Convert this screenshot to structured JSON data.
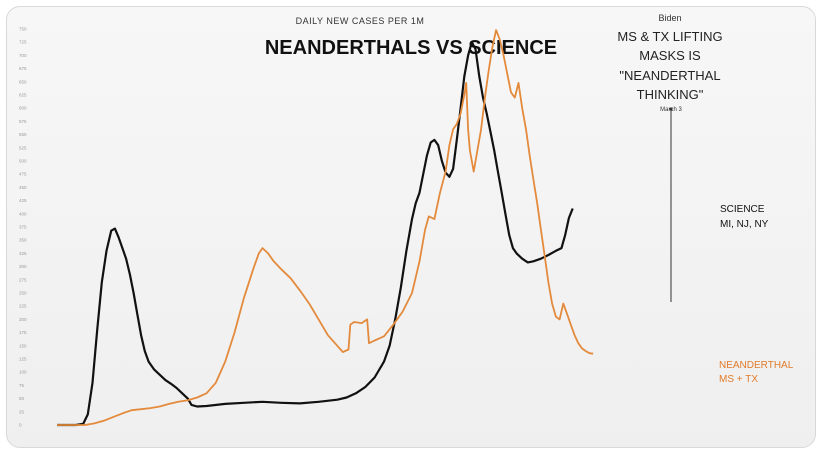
{
  "chart_data": {
    "type": "line",
    "subtitle": "DAILY NEW CASES PER 1M",
    "title": "NEANDERTHALS VS SCIENCE",
    "ylim": [
      0,
      750
    ],
    "yticks": [
      0,
      25,
      50,
      75,
      100,
      125,
      150,
      175,
      200,
      225,
      250,
      275,
      300,
      325,
      350,
      375,
      400,
      425,
      450,
      475,
      500,
      525,
      550,
      575,
      600,
      625,
      650,
      675,
      700,
      725,
      750
    ],
    "series": [
      {
        "name": "SCIENCE MI, NJ, NY",
        "color": "#111111",
        "points": [
          [
            0,
            0
          ],
          [
            20,
            0
          ],
          [
            28,
            2
          ],
          [
            33,
            20
          ],
          [
            38,
            80
          ],
          [
            43,
            180
          ],
          [
            48,
            270
          ],
          [
            53,
            330
          ],
          [
            58,
            368
          ],
          [
            62,
            372
          ],
          [
            66,
            355
          ],
          [
            70,
            335
          ],
          [
            74,
            315
          ],
          [
            78,
            285
          ],
          [
            82,
            250
          ],
          [
            86,
            210
          ],
          [
            90,
            170
          ],
          [
            94,
            140
          ],
          [
            98,
            120
          ],
          [
            104,
            105
          ],
          [
            110,
            95
          ],
          [
            116,
            85
          ],
          [
            122,
            78
          ],
          [
            128,
            70
          ],
          [
            134,
            60
          ],
          [
            140,
            50
          ],
          [
            144,
            38
          ],
          [
            150,
            35
          ],
          [
            160,
            36
          ],
          [
            180,
            40
          ],
          [
            200,
            42
          ],
          [
            220,
            44
          ],
          [
            240,
            42
          ],
          [
            260,
            41
          ],
          [
            280,
            44
          ],
          [
            300,
            48
          ],
          [
            310,
            52
          ],
          [
            320,
            60
          ],
          [
            330,
            72
          ],
          [
            340,
            90
          ],
          [
            350,
            120
          ],
          [
            356,
            150
          ],
          [
            362,
            200
          ],
          [
            368,
            260
          ],
          [
            374,
            330
          ],
          [
            380,
            390
          ],
          [
            384,
            420
          ],
          [
            388,
            440
          ],
          [
            392,
            475
          ],
          [
            396,
            510
          ],
          [
            400,
            535
          ],
          [
            404,
            540
          ],
          [
            408,
            530
          ],
          [
            412,
            500
          ],
          [
            416,
            478
          ],
          [
            420,
            470
          ],
          [
            424,
            485
          ],
          [
            428,
            540
          ],
          [
            432,
            600
          ],
          [
            436,
            660
          ],
          [
            440,
            700
          ],
          [
            444,
            725
          ],
          [
            448,
            712
          ],
          [
            452,
            660
          ],
          [
            456,
            620
          ],
          [
            460,
            590
          ],
          [
            464,
            555
          ],
          [
            468,
            520
          ],
          [
            472,
            480
          ],
          [
            476,
            440
          ],
          [
            480,
            400
          ],
          [
            484,
            360
          ],
          [
            488,
            335
          ],
          [
            492,
            325
          ],
          [
            498,
            315
          ],
          [
            504,
            308
          ],
          [
            510,
            310
          ],
          [
            518,
            315
          ],
          [
            526,
            322
          ],
          [
            534,
            330
          ],
          [
            540,
            335
          ],
          [
            544,
            360
          ],
          [
            548,
            392
          ],
          [
            552,
            410
          ]
        ]
      },
      {
        "name": "NEANDERTHAL MS + TX",
        "color": "#e38a3c",
        "points": [
          [
            0,
            0
          ],
          [
            30,
            0
          ],
          [
            40,
            3
          ],
          [
            50,
            8
          ],
          [
            60,
            15
          ],
          [
            70,
            22
          ],
          [
            80,
            28
          ],
          [
            90,
            30
          ],
          [
            100,
            32
          ],
          [
            110,
            35
          ],
          [
            120,
            40
          ],
          [
            130,
            44
          ],
          [
            140,
            47
          ],
          [
            150,
            52
          ],
          [
            160,
            60
          ],
          [
            170,
            80
          ],
          [
            180,
            120
          ],
          [
            190,
            175
          ],
          [
            200,
            240
          ],
          [
            210,
            295
          ],
          [
            216,
            325
          ],
          [
            220,
            335
          ],
          [
            226,
            325
          ],
          [
            232,
            310
          ],
          [
            240,
            295
          ],
          [
            250,
            278
          ],
          [
            260,
            255
          ],
          [
            270,
            230
          ],
          [
            280,
            200
          ],
          [
            290,
            170
          ],
          [
            300,
            150
          ],
          [
            306,
            138
          ],
          [
            312,
            143
          ],
          [
            314,
            190
          ],
          [
            318,
            195
          ],
          [
            326,
            193
          ],
          [
            332,
            200
          ],
          [
            334,
            155
          ],
          [
            340,
            160
          ],
          [
            350,
            168
          ],
          [
            360,
            190
          ],
          [
            370,
            215
          ],
          [
            380,
            250
          ],
          [
            388,
            310
          ],
          [
            394,
            370
          ],
          [
            398,
            395
          ],
          [
            404,
            390
          ],
          [
            410,
            440
          ],
          [
            416,
            480
          ],
          [
            420,
            530
          ],
          [
            424,
            560
          ],
          [
            428,
            570
          ],
          [
            432,
            590
          ],
          [
            436,
            625
          ],
          [
            438,
            648
          ],
          [
            440,
            560
          ],
          [
            442,
            520
          ],
          [
            446,
            480
          ],
          [
            450,
            520
          ],
          [
            454,
            560
          ],
          [
            458,
            620
          ],
          [
            462,
            670
          ],
          [
            466,
            715
          ],
          [
            470,
            748
          ],
          [
            474,
            730
          ],
          [
            478,
            700
          ],
          [
            482,
            665
          ],
          [
            486,
            630
          ],
          [
            490,
            620
          ],
          [
            494,
            648
          ],
          [
            498,
            600
          ],
          [
            502,
            560
          ],
          [
            506,
            510
          ],
          [
            510,
            465
          ],
          [
            514,
            420
          ],
          [
            518,
            370
          ],
          [
            522,
            320
          ],
          [
            526,
            270
          ],
          [
            530,
            230
          ],
          [
            534,
            205
          ],
          [
            538,
            200
          ],
          [
            542,
            230
          ],
          [
            546,
            210
          ],
          [
            550,
            190
          ],
          [
            554,
            170
          ],
          [
            558,
            155
          ],
          [
            562,
            145
          ],
          [
            566,
            140
          ],
          [
            570,
            136
          ],
          [
            574,
            135
          ]
        ]
      }
    ],
    "annotations": {
      "biden_line1": "Biden",
      "biden_line2": "MS & TX LIFTING",
      "biden_line3": "MASKS IS",
      "biden_line4": "\"NEANDERTHAL",
      "biden_line5": "THINKING\"",
      "march": "March 3",
      "science_line1": "SCIENCE",
      "science_line2": "MI, NJ, NY",
      "nean_line1": "NEANDERTHAL",
      "nean_line2": "MS + TX"
    }
  }
}
